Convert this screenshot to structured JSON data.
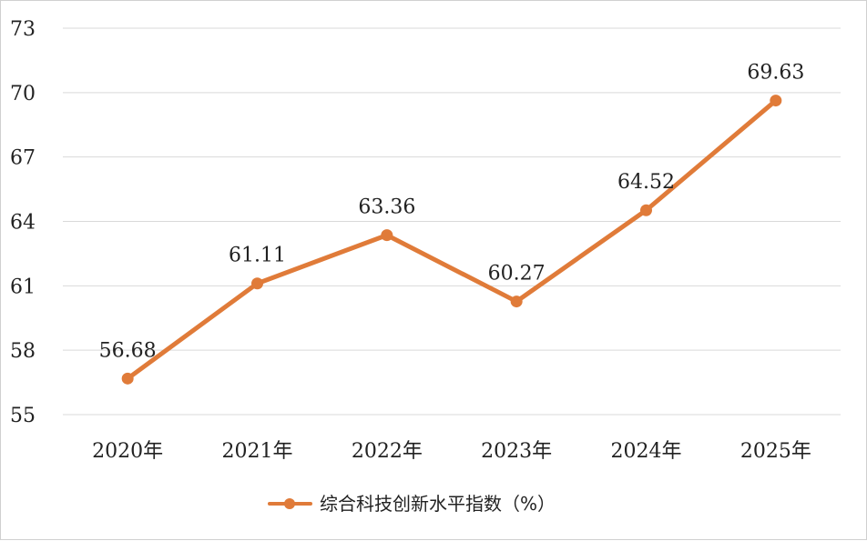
{
  "chart_data": {
    "type": "line",
    "categories": [
      "2020年",
      "2021年",
      "2022年",
      "2023年",
      "2024年",
      "2025年"
    ],
    "series": [
      {
        "name": "综合科技创新水平指数（%）",
        "values": [
          56.68,
          61.11,
          63.36,
          60.27,
          64.52,
          69.63
        ],
        "labels": [
          "56.68",
          "61.11",
          "63.36",
          "60.27",
          "64.52",
          "69.63"
        ]
      }
    ],
    "ylim": [
      55,
      73
    ],
    "yticks": [
      "55",
      "58",
      "61",
      "64",
      "67",
      "70",
      "73"
    ],
    "grid": true,
    "legend": "bottom",
    "color": "#e07b39"
  }
}
